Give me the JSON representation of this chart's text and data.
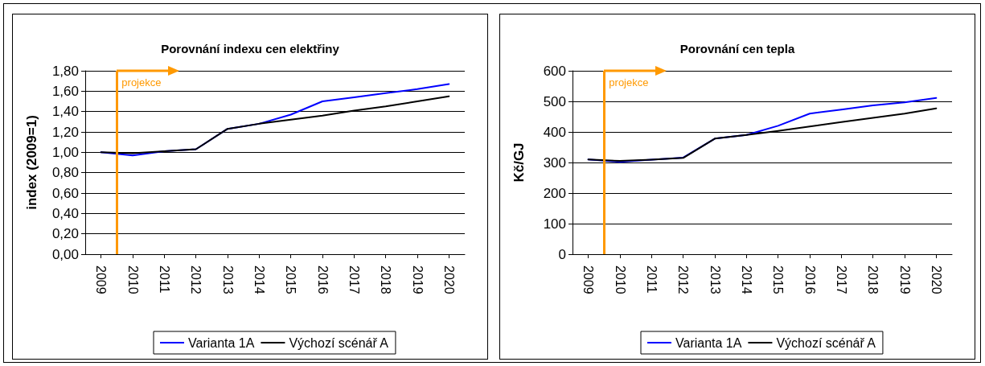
{
  "chart_data": [
    {
      "type": "line",
      "title": "Porovnání indexu cen elektřiny",
      "ylabel": "index (2009=1)",
      "x": [
        2009,
        2010,
        2011,
        2012,
        2013,
        2014,
        2015,
        2016,
        2017,
        2018,
        2019,
        2020
      ],
      "xlim": [
        2008.5,
        2020.5
      ],
      "xticks": [
        {
          "value": 2009,
          "label": "2009"
        },
        {
          "value": 2010,
          "label": "2010"
        },
        {
          "value": 2011,
          "label": "2011"
        },
        {
          "value": 2012,
          "label": "2012"
        },
        {
          "value": 2013,
          "label": "2013"
        },
        {
          "value": 2014,
          "label": "2014"
        },
        {
          "value": 2015,
          "label": "2015"
        },
        {
          "value": 2016,
          "label": "2016"
        },
        {
          "value": 2017,
          "label": "2017"
        },
        {
          "value": 2018,
          "label": "2018"
        },
        {
          "value": 2019,
          "label": "2019"
        },
        {
          "value": 2020,
          "label": "2020"
        }
      ],
      "ylim": [
        0,
        1.8
      ],
      "yticks": [
        {
          "value": 0,
          "label": "0,00"
        },
        {
          "value": 0.2,
          "label": "0,20"
        },
        {
          "value": 0.4,
          "label": "0,40"
        },
        {
          "value": 0.6,
          "label": "0,60"
        },
        {
          "value": 0.8,
          "label": "0,80"
        },
        {
          "value": 1,
          "label": "1,00"
        },
        {
          "value": 1.2,
          "label": "1,20"
        },
        {
          "value": 1.4,
          "label": "1,40"
        },
        {
          "value": 1.6,
          "label": "1,60"
        },
        {
          "value": 1.8,
          "label": "1,80"
        }
      ],
      "grid": "y",
      "legend": "bottom",
      "marker": "none",
      "series": [
        {
          "name": "Varianta 1A",
          "color": "#0000ff",
          "values": [
            1.0,
            0.97,
            1.01,
            1.03,
            1.23,
            1.28,
            1.37,
            1.5,
            1.54,
            1.58,
            1.62,
            1.67
          ]
        },
        {
          "name": "Výchozí scénář A",
          "color": "#000000",
          "values": [
            1.0,
            0.99,
            1.01,
            1.03,
            1.23,
            1.28,
            1.32,
            1.36,
            1.41,
            1.45,
            1.5,
            1.55
          ]
        }
      ],
      "ref_lines": [
        {
          "axis": "x",
          "value": 2009.5,
          "label": "projekce",
          "color": "#ff9900"
        }
      ]
    },
    {
      "type": "line",
      "title": "Porovnání cen tepla",
      "ylabel": "Kč/GJ",
      "x": [
        2009,
        2010,
        2011,
        2012,
        2013,
        2014,
        2015,
        2016,
        2017,
        2018,
        2019,
        2020
      ],
      "xlim": [
        2008.5,
        2020.5
      ],
      "xticks": [
        {
          "value": 2009,
          "label": "2009"
        },
        {
          "value": 2010,
          "label": "2010"
        },
        {
          "value": 2011,
          "label": "2011"
        },
        {
          "value": 2012,
          "label": "2012"
        },
        {
          "value": 2013,
          "label": "2013"
        },
        {
          "value": 2014,
          "label": "2014"
        },
        {
          "value": 2015,
          "label": "2015"
        },
        {
          "value": 2016,
          "label": "2016"
        },
        {
          "value": 2017,
          "label": "2017"
        },
        {
          "value": 2018,
          "label": "2018"
        },
        {
          "value": 2019,
          "label": "2019"
        },
        {
          "value": 2020,
          "label": "2020"
        }
      ],
      "ylim": [
        0,
        600
      ],
      "yticks": [
        0,
        100,
        200,
        300,
        400,
        500,
        600
      ],
      "grid": "y",
      "legend": "bottom",
      "marker": "none",
      "series": [
        {
          "name": "Varianta 1A",
          "color": "#0000ff",
          "values": [
            310,
            302,
            309,
            316,
            378,
            390,
            420,
            460,
            473,
            487,
            497,
            511
          ]
        },
        {
          "name": "Výchozí scénář A",
          "color": "#000000",
          "values": [
            310,
            305,
            309,
            315,
            378,
            390,
            403,
            418,
            432,
            446,
            460,
            477
          ]
        }
      ],
      "ref_lines": [
        {
          "axis": "x",
          "value": 2009.5,
          "label": "projekce",
          "color": "#ff9900"
        }
      ]
    }
  ]
}
